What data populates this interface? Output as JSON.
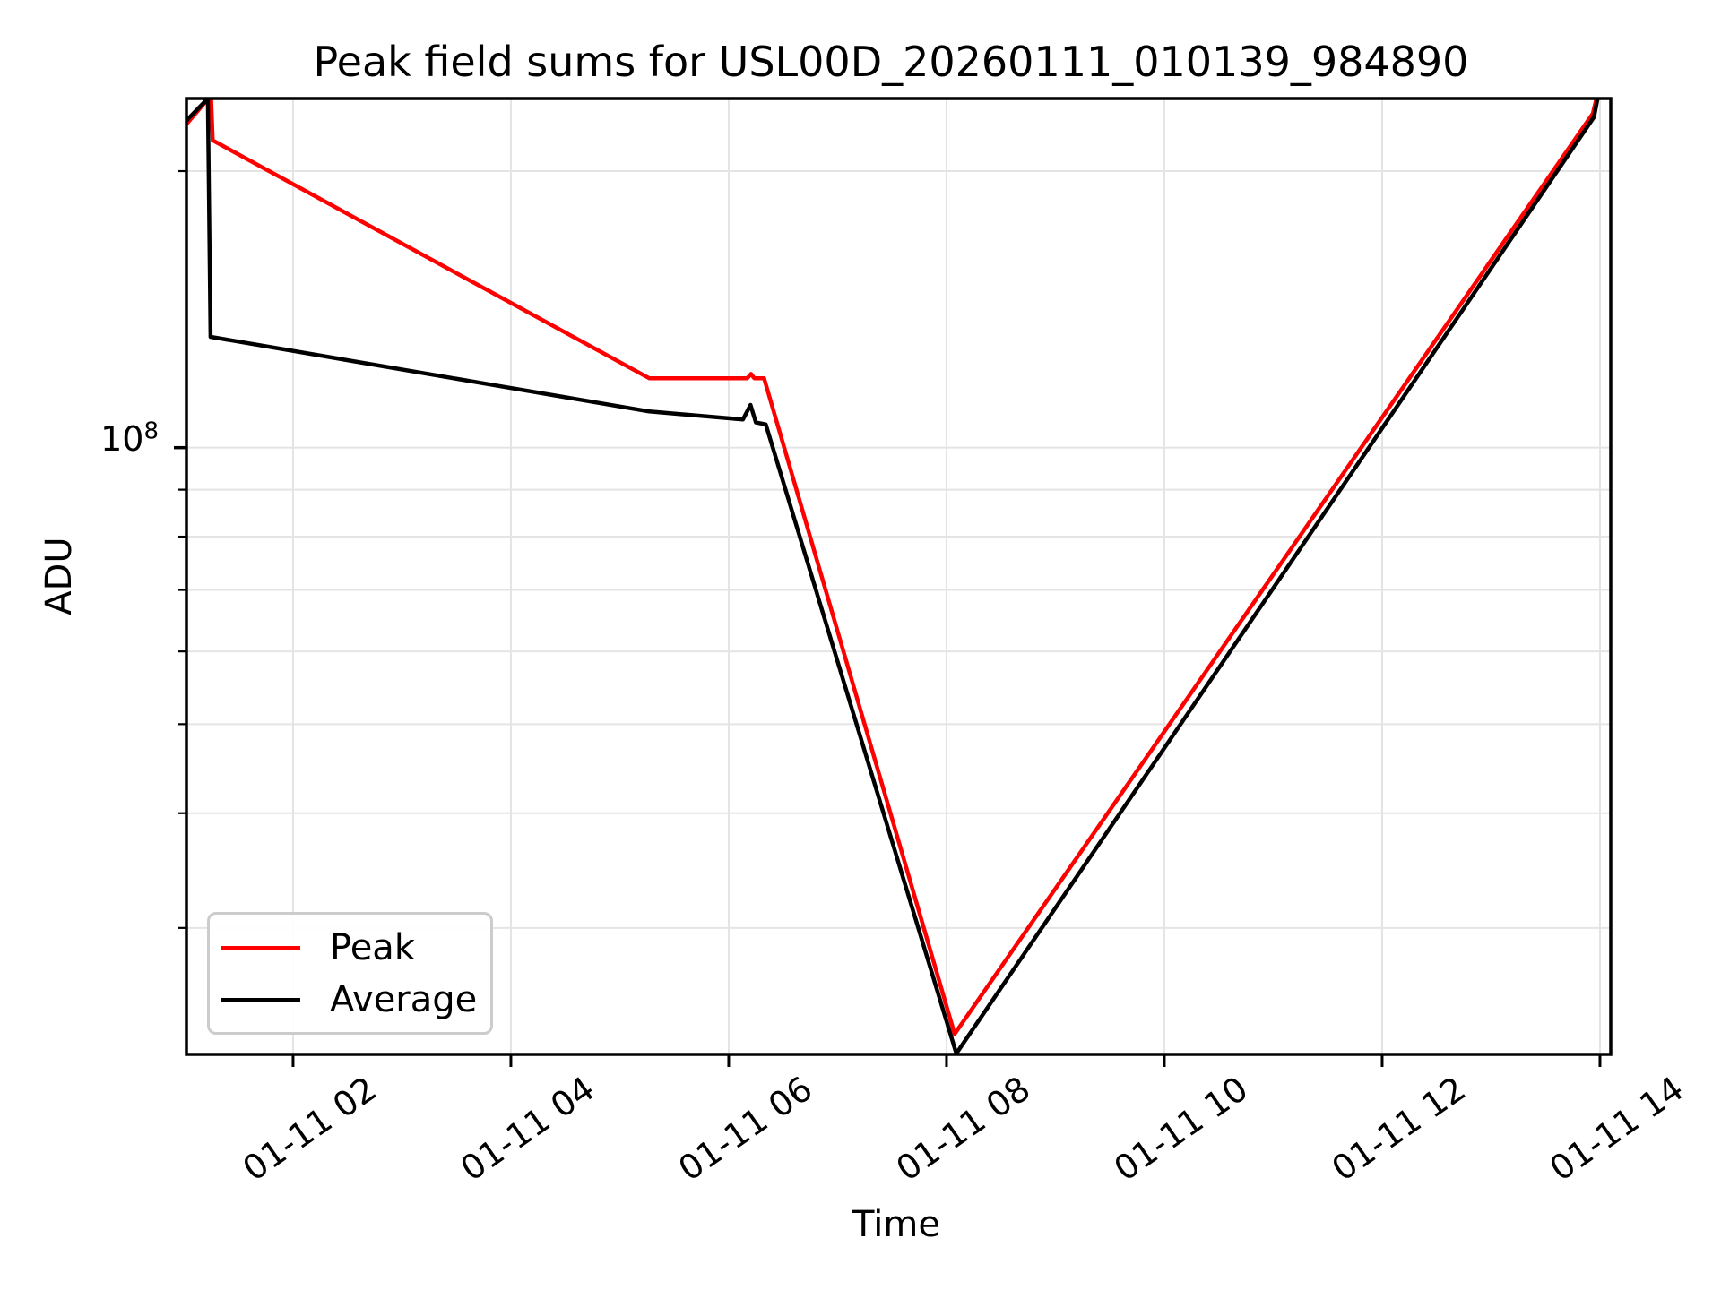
{
  "chart_data": {
    "type": "line",
    "title": "Peak field sums for USL00D_20260111_010139_984890",
    "xlabel": "Time",
    "ylabel": "ADU",
    "y_scale": "log",
    "grid": true,
    "legend_position": "lower left",
    "x_unit": "hours of day on 2026-01-11",
    "xlim_hours": [
      1.021,
      14.099
    ],
    "ylim": [
      21850000,
      239900000
    ],
    "x_ticks": [
      {
        "hour": 2,
        "label": "01-11 02"
      },
      {
        "hour": 4,
        "label": "01-11 04"
      },
      {
        "hour": 6,
        "label": "01-11 06"
      },
      {
        "hour": 8,
        "label": "01-11 08"
      },
      {
        "hour": 10,
        "label": "01-11 10"
      },
      {
        "hour": 12,
        "label": "01-11 12"
      },
      {
        "hour": 14,
        "label": "01-11 14"
      }
    ],
    "y_major_tick": {
      "value": 100000000,
      "base": "10",
      "exp": "8"
    },
    "y_minor_ticks": [
      200000000,
      90000000,
      80000000,
      70000000,
      60000000,
      50000000,
      40000000,
      30000000
    ],
    "series": [
      {
        "name": "Peak",
        "color": "#ff0000",
        "points": [
          [
            1.021,
            225000000
          ],
          [
            1.222,
            239900000
          ],
          [
            1.247,
            239900000
          ],
          [
            1.262,
            216000000
          ],
          [
            5.27,
            119000000
          ],
          [
            6.17,
            119000000
          ],
          [
            6.205,
            120300000
          ],
          [
            6.235,
            119000000
          ],
          [
            6.325,
            119000000
          ],
          [
            8.074,
            23000000
          ],
          [
            13.934,
            231000000
          ],
          [
            13.967,
            239900000
          ]
        ]
      },
      {
        "name": "Average",
        "color": "#000000",
        "points": [
          [
            1.021,
            227000000
          ],
          [
            1.218,
            239900000
          ],
          [
            1.242,
            132000000
          ],
          [
            3.84,
            117000000
          ],
          [
            5.27,
            109500000
          ],
          [
            6.13,
            107300000
          ],
          [
            6.2,
            111300000
          ],
          [
            6.25,
            106500000
          ],
          [
            6.34,
            106000000
          ],
          [
            8.09,
            21900000
          ],
          [
            13.945,
            229000000
          ],
          [
            13.978,
            239900000
          ]
        ]
      }
    ],
    "style": {
      "grid_color": "#e4e4e4",
      "spine_color": "#000000",
      "background": "#ffffff",
      "line_width": 4.5,
      "spine_width": 3.5
    }
  }
}
